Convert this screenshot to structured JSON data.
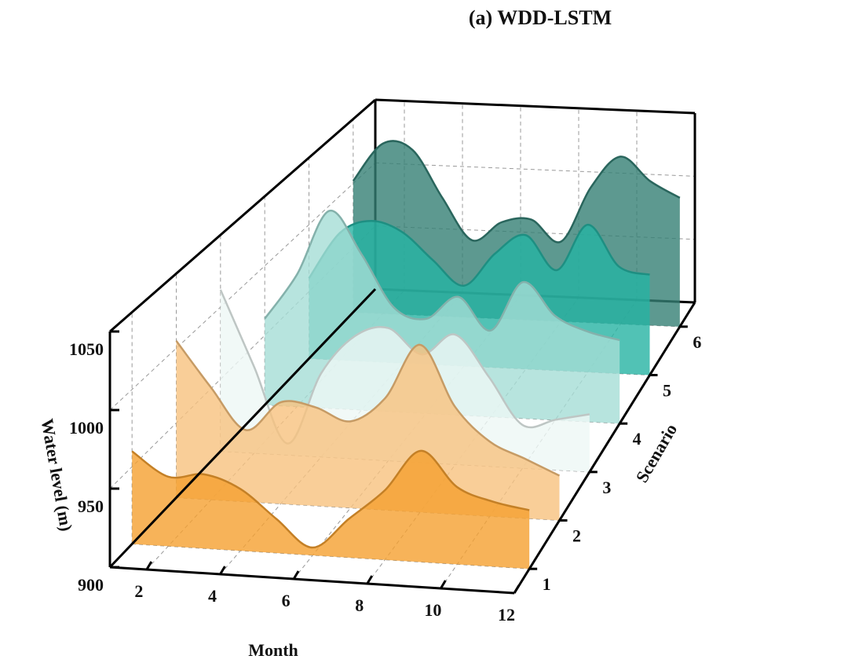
{
  "chart_data": {
    "type": "ridgeline3d",
    "title": "(a) WDD-LSTM",
    "x_label": "Month",
    "y_label": "Water level (m)",
    "z_label": "Scenario",
    "x": [
      1,
      2,
      3,
      4,
      5,
      6,
      7,
      8,
      9,
      10,
      11,
      12
    ],
    "xlim": [
      1,
      12
    ],
    "xticks": [
      2,
      4,
      6,
      8,
      10,
      12
    ],
    "ylim": [
      900,
      1050
    ],
    "yticks": [
      900,
      950,
      1000,
      1050
    ],
    "zlim": [
      0.5,
      6.5
    ],
    "zticks": [
      1,
      2,
      3,
      4,
      5,
      6
    ],
    "grid": true,
    "series": [
      {
        "z": 1,
        "color": "#f5a030",
        "values": [
          960,
          945,
          948,
          940,
          922,
          905,
          925,
          945,
          972,
          950,
          942,
          938
        ]
      },
      {
        "z": 2,
        "color": "#f8c27e",
        "values": [
          1005,
          975,
          948,
          968,
          966,
          958,
          975,
          1012,
          972,
          950,
          940,
          930
        ]
      },
      {
        "z": 3,
        "color": "#eef7f5",
        "values": [
          1012,
          960,
          908,
          958,
          985,
          992,
          975,
          990,
          962,
          930,
          935,
          940
        ]
      },
      {
        "z": 4,
        "color": "#a5ddd6",
        "values": [
          962,
          995,
          1042,
          1012,
          975,
          968,
          985,
          962,
          998,
          975,
          965,
          960
        ]
      },
      {
        "z": 5,
        "color": "#25b3a3",
        "values": [
          960,
          995,
          1005,
          998,
          978,
          960,
          985,
          1000,
          975,
          1010,
          980,
          975
        ]
      },
      {
        "z": 6,
        "color": "#357f74",
        "values": [
          1002,
          1032,
          1028,
          992,
          960,
          975,
          978,
          962,
          1005,
          1030,
          1012,
          1000
        ]
      }
    ]
  }
}
